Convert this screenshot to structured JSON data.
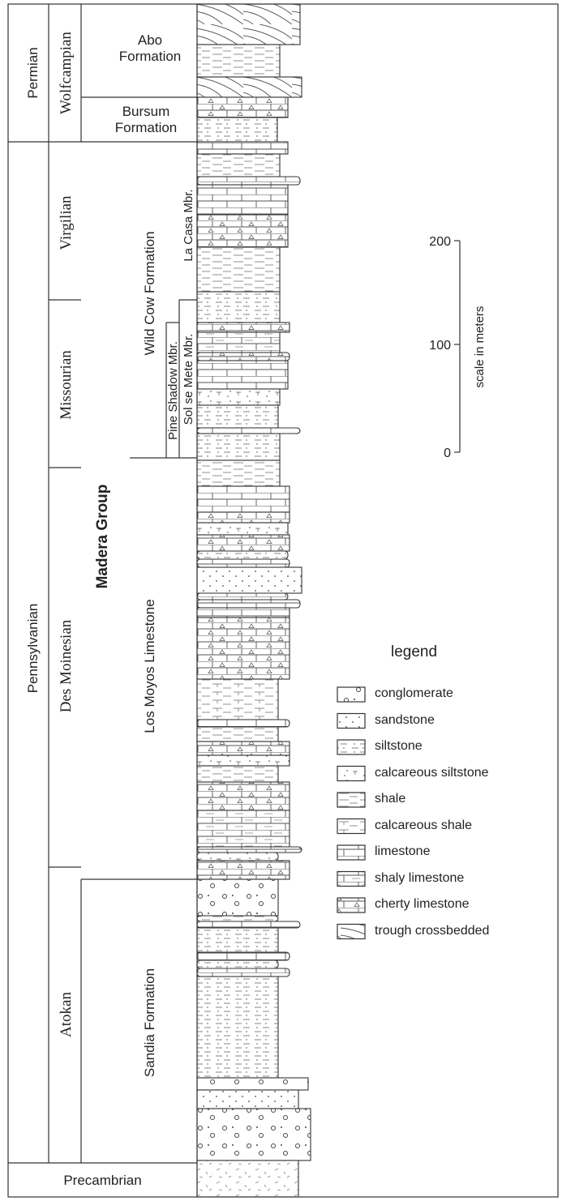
{
  "periods": [
    "Permian",
    "Pennsylvanian",
    "Precambrian"
  ],
  "epochs": [
    "Wolfcampian",
    "Virgilian",
    "Missourian",
    "Des Moinesian",
    "Atokan"
  ],
  "group": "Madera Group",
  "formations": [
    "Abo Formation",
    "Bursum Formation",
    "Wild Cow Formation",
    "Los Moyos Limestone",
    "Sandia Formation"
  ],
  "members": [
    "La Casa Mbr.",
    "Pine Shadow Mbr.",
    "Sol se Mete Mbr."
  ],
  "scale": {
    "ticks": [
      200,
      100,
      0
    ],
    "label": "scale in meters"
  },
  "legend": {
    "title": "legend",
    "items": [
      "conglomerate",
      "sandstone",
      "siltstone",
      "calcareous siltstone",
      "shale",
      "calcareous shale",
      "limestone",
      "shaly limestone",
      "cherty limestone",
      "trough crossbedded"
    ]
  }
}
